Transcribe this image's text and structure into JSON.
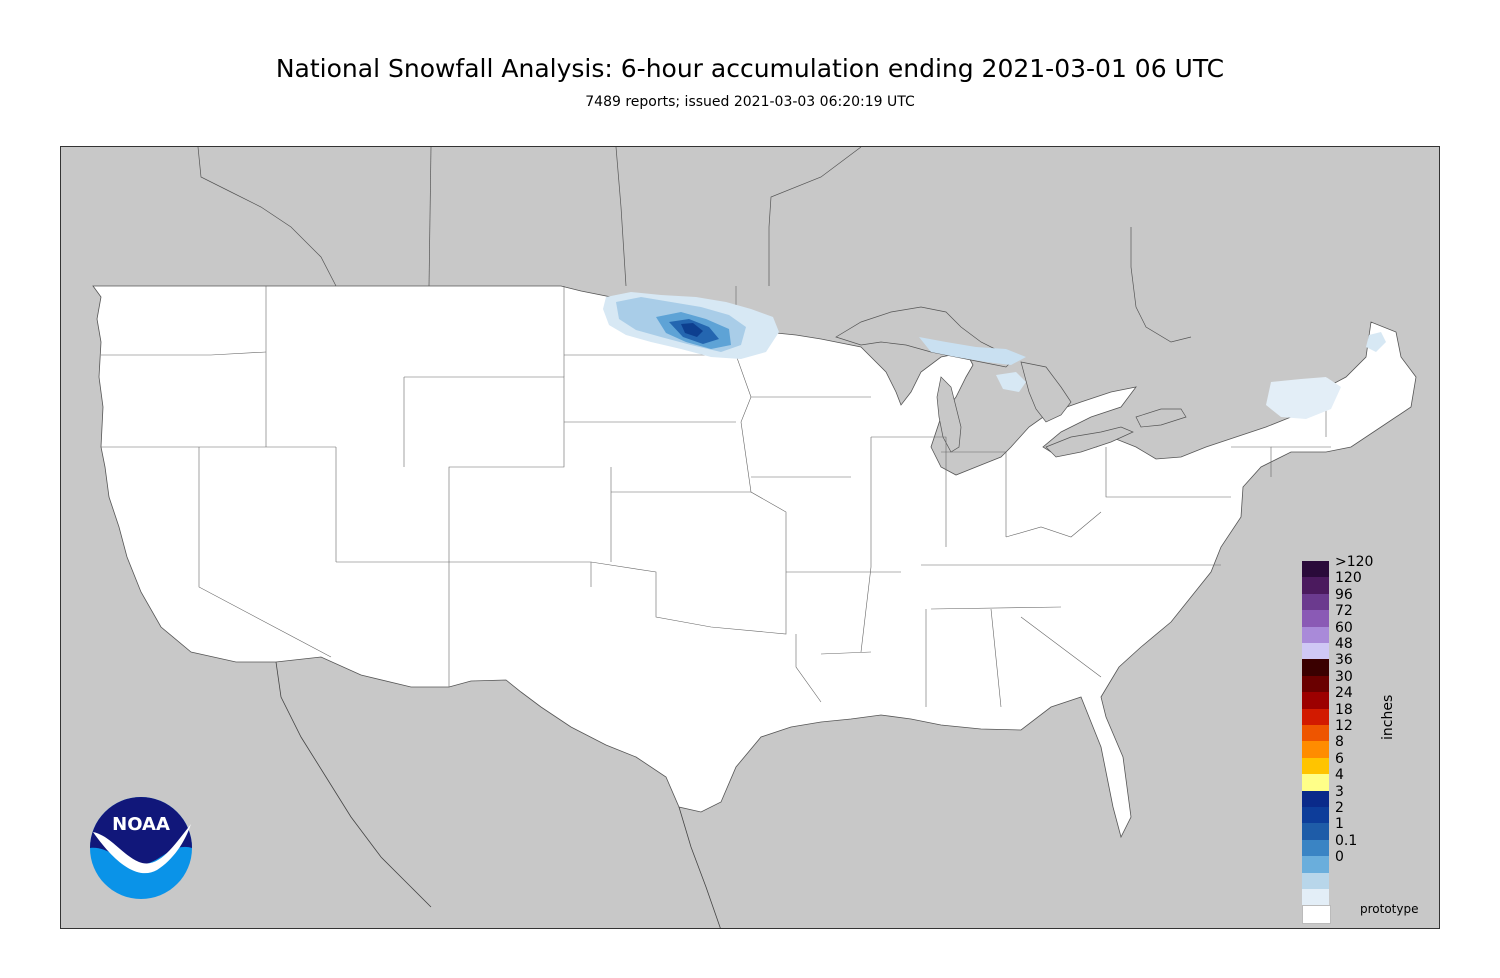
{
  "title": "National Snowfall Analysis: 6-hour accumulation ending 2021-03-01 06 UTC",
  "subtitle": "7489 reports; issued 2021-03-03 06:20:19 UTC",
  "legend": {
    "units": "inches",
    "levels": [
      {
        "label": ">120",
        "color": "#2a0a3a"
      },
      {
        "label": "120",
        "color": "#4b1a5e"
      },
      {
        "label": "96",
        "color": "#6b3a8e"
      },
      {
        "label": "72",
        "color": "#8a5ab5"
      },
      {
        "label": "60",
        "color": "#a98ad9"
      },
      {
        "label": "48",
        "color": "#cfc8f5"
      },
      {
        "label": "36",
        "color": "#3a0000"
      },
      {
        "label": "30",
        "color": "#6a0000"
      },
      {
        "label": "24",
        "color": "#9c0000"
      },
      {
        "label": "18",
        "color": "#d21a00"
      },
      {
        "label": "12",
        "color": "#ee5500"
      },
      {
        "label": "8",
        "color": "#ff8c00"
      },
      {
        "label": "6",
        "color": "#ffc400"
      },
      {
        "label": "4",
        "color": "#ffff88"
      },
      {
        "label": "3",
        "color": "#0a2a8a"
      },
      {
        "label": "2",
        "color": "#0d3d9a"
      },
      {
        "label": "1",
        "color": "#1e5ca8"
      },
      {
        "label": "0.1",
        "color": "#3a84c4"
      },
      {
        "label": "0",
        "color": "#6aaedc"
      },
      {
        "label": "",
        "color": "#b8d6ea"
      },
      {
        "label": "",
        "color": "#e3eef7"
      },
      {
        "label": "",
        "color": "#ffffff"
      }
    ]
  },
  "footer": {
    "prototype_label": "prototype"
  },
  "logo": {
    "text": "NOAA",
    "colors": {
      "dark": "#11177a",
      "light": "#0a93e8"
    }
  },
  "map": {
    "colors": {
      "background": "#c8c8c8",
      "land_analysis": "#ffffff",
      "borders": "#555555",
      "snow_light": "#d7e8f4",
      "snow_medium": "#a9cde8",
      "snow_moderate": "#5ea3d6",
      "snow_heavy": "#2466b0",
      "snow_max": "#0d3f8f"
    }
  }
}
